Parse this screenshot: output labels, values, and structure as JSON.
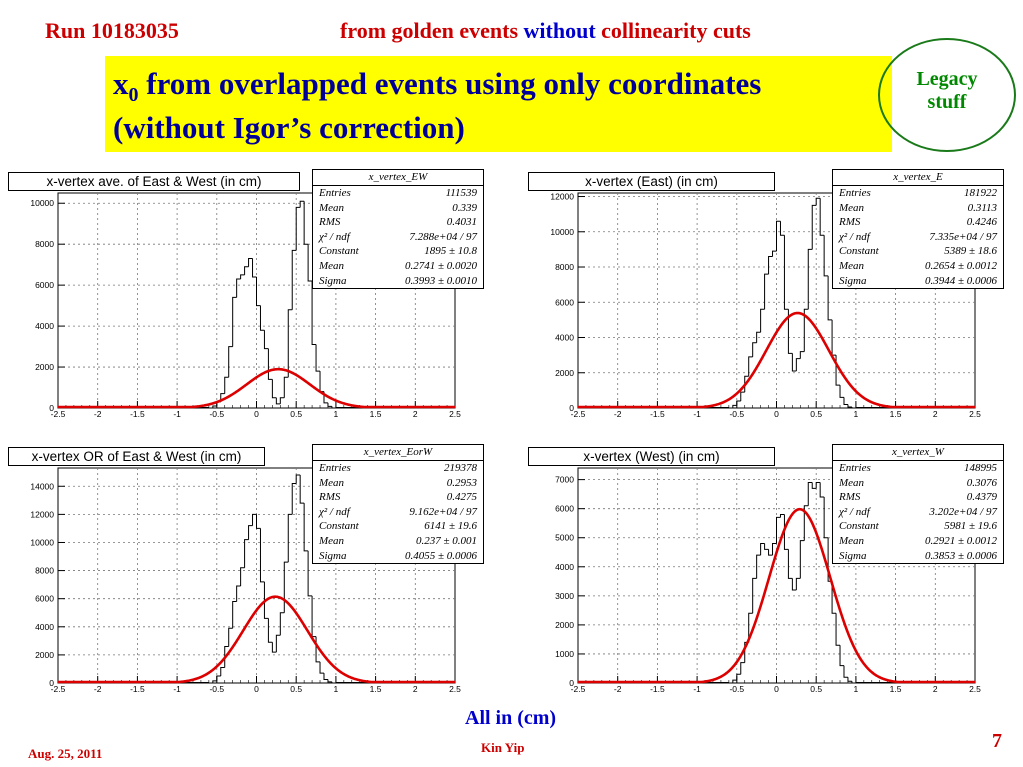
{
  "header": {
    "run": "Run 10183035",
    "subtitle_a": "from golden events ",
    "subtitle_b": "without",
    "subtitle_c": " collinearity cuts"
  },
  "title": {
    "line1_prefix": "x",
    "line1_sub": "0",
    "line1_rest": " from overlapped events using only coordinates",
    "line2": "(without Igor’s correction)"
  },
  "badge": {
    "line1": "Legacy",
    "line2": "stuff"
  },
  "footer": {
    "units": "All in (cm)",
    "date": "Aug. 25, 2011",
    "author": "Kin Yip",
    "page": "7"
  },
  "colors": {
    "fit": "#dd0000",
    "title_text": "#000099",
    "title_bg": "#ffff00",
    "accent_red": "#cc0000",
    "legacy_green": "#008800"
  },
  "chart_data": [
    {
      "type": "histogram",
      "title": "x-vertex ave. of East & West (in cm)",
      "stats_name": "x_vertex_EW",
      "stats": [
        [
          "Entries",
          "111539"
        ],
        [
          "Mean",
          "0.339"
        ],
        [
          "RMS",
          "0.4031"
        ],
        [
          "χ² / ndf",
          "7.288e+04 / 97"
        ],
        [
          "Constant",
          "1895 ± 10.8"
        ],
        [
          "Mean",
          "0.2741 ± 0.0020"
        ],
        [
          "Sigma",
          "0.3993 ± 0.0010"
        ]
      ],
      "xlim": [
        -2.5,
        2.5
      ],
      "ylim": [
        0,
        10500
      ],
      "xticks": [
        -2.5,
        -2,
        -1.5,
        -1,
        -0.5,
        0,
        0.5,
        1,
        1.5,
        2,
        2.5
      ],
      "yticks": [
        0,
        2000,
        4000,
        6000,
        8000,
        10000
      ],
      "bins": {
        "x0": -0.6,
        "width": 0.05,
        "values": [
          0,
          100,
          300,
          700,
          1500,
          3000,
          5400,
          6300,
          6500,
          6900,
          7300,
          6400,
          5000,
          3800,
          2900,
          1400,
          500,
          200,
          500,
          1500,
          4800,
          7700,
          9800,
          10100,
          8000,
          6200,
          3100,
          1800,
          800,
          250,
          80,
          0
        ]
      },
      "fit": {
        "constant": 1895,
        "mean": 0.2741,
        "sigma": 0.3993
      },
      "grid": true
    },
    {
      "type": "histogram",
      "title": "x-vertex (East) (in cm)",
      "stats_name": "x_vertex_E",
      "stats": [
        [
          "Entries",
          "181922"
        ],
        [
          "Mean",
          "0.3113"
        ],
        [
          "RMS",
          "0.4246"
        ],
        [
          "χ² / ndf",
          "7.335e+04 / 97"
        ],
        [
          "Constant",
          "5389 ± 18.6"
        ],
        [
          "Mean",
          "0.2654 ± 0.0012"
        ],
        [
          "Sigma",
          "0.3944 ± 0.0006"
        ]
      ],
      "xlim": [
        -2.5,
        2.5
      ],
      "ylim": [
        0,
        12200
      ],
      "xticks": [
        -2.5,
        -2,
        -1.5,
        -1,
        -0.5,
        0,
        0.5,
        1,
        1.5,
        2,
        2.5
      ],
      "yticks": [
        0,
        2000,
        4000,
        6000,
        8000,
        10000,
        12000
      ],
      "bins": {
        "x0": -0.6,
        "width": 0.05,
        "values": [
          0,
          150,
          400,
          900,
          1800,
          2900,
          3700,
          4300,
          5600,
          7600,
          8600,
          8900,
          10600,
          9800,
          5600,
          3100,
          2100,
          2800,
          3200,
          5600,
          9000,
          11500,
          11900,
          9800,
          7500,
          5000,
          3000,
          1300,
          600,
          200,
          60,
          0
        ]
      },
      "fit": {
        "constant": 5389,
        "mean": 0.2654,
        "sigma": 0.3944
      },
      "grid": true
    },
    {
      "type": "histogram",
      "title": "x-vertex OR of East & West (in cm)",
      "stats_name": "x_vertex_EorW",
      "stats": [
        [
          "Entries",
          "219378"
        ],
        [
          "Mean",
          "0.2953"
        ],
        [
          "RMS",
          "0.4275"
        ],
        [
          "χ² / ndf",
          "9.162e+04 / 97"
        ],
        [
          "Constant",
          "6141 ± 19.6"
        ],
        [
          "Mean",
          "0.237 ± 0.001"
        ],
        [
          "Sigma",
          "0.4055 ± 0.0006"
        ]
      ],
      "xlim": [
        -2.5,
        2.5
      ],
      "ylim": [
        0,
        15300
      ],
      "xticks": [
        -2.5,
        -2,
        -1.5,
        -1,
        -0.5,
        0,
        0.5,
        1,
        1.5,
        2,
        2.5
      ],
      "yticks": [
        0,
        2000,
        4000,
        6000,
        8000,
        10000,
        12000,
        14000
      ],
      "bins": {
        "x0": -0.6,
        "width": 0.05,
        "values": [
          0,
          150,
          500,
          1100,
          2600,
          3900,
          5800,
          6900,
          8200,
          10200,
          11200,
          12000,
          11000,
          7200,
          4600,
          2900,
          2200,
          3400,
          5000,
          8600,
          12000,
          14200,
          14800,
          12800,
          9400,
          6200,
          3300,
          1500,
          700,
          250,
          80,
          0
        ]
      },
      "fit": {
        "constant": 6141,
        "mean": 0.237,
        "sigma": 0.4055
      },
      "grid": true
    },
    {
      "type": "histogram",
      "title": "x-vertex (West) (in cm)",
      "stats_name": "x_vertex_W",
      "stats": [
        [
          "Entries",
          "148995"
        ],
        [
          "Mean",
          "0.3076"
        ],
        [
          "RMS",
          "0.4379"
        ],
        [
          "χ² / ndf",
          "3.202e+04 / 97"
        ],
        [
          "Constant",
          "5981 ± 19.6"
        ],
        [
          "Mean",
          "0.2921 ± 0.0012"
        ],
        [
          "Sigma",
          "0.3853 ± 0.0006"
        ]
      ],
      "xlim": [
        -2.5,
        2.5
      ],
      "ylim": [
        0,
        7400
      ],
      "xticks": [
        -2.5,
        -2,
        -1.5,
        -1,
        -0.5,
        0,
        0.5,
        1,
        1.5,
        2,
        2.5
      ],
      "yticks": [
        0,
        1000,
        2000,
        3000,
        4000,
        5000,
        6000,
        7000
      ],
      "bins": {
        "x0": -0.6,
        "width": 0.05,
        "values": [
          0,
          100,
          300,
          700,
          1400,
          2400,
          3600,
          4400,
          4800,
          4600,
          4400,
          4800,
          5700,
          5800,
          4600,
          3600,
          3200,
          3600,
          4900,
          6100,
          6900,
          6700,
          6900,
          6400,
          5000,
          3500,
          2400,
          1300,
          600,
          200,
          60,
          0
        ]
      },
      "fit": {
        "constant": 5981,
        "mean": 0.2921,
        "sigma": 0.3853
      },
      "grid": true
    }
  ]
}
